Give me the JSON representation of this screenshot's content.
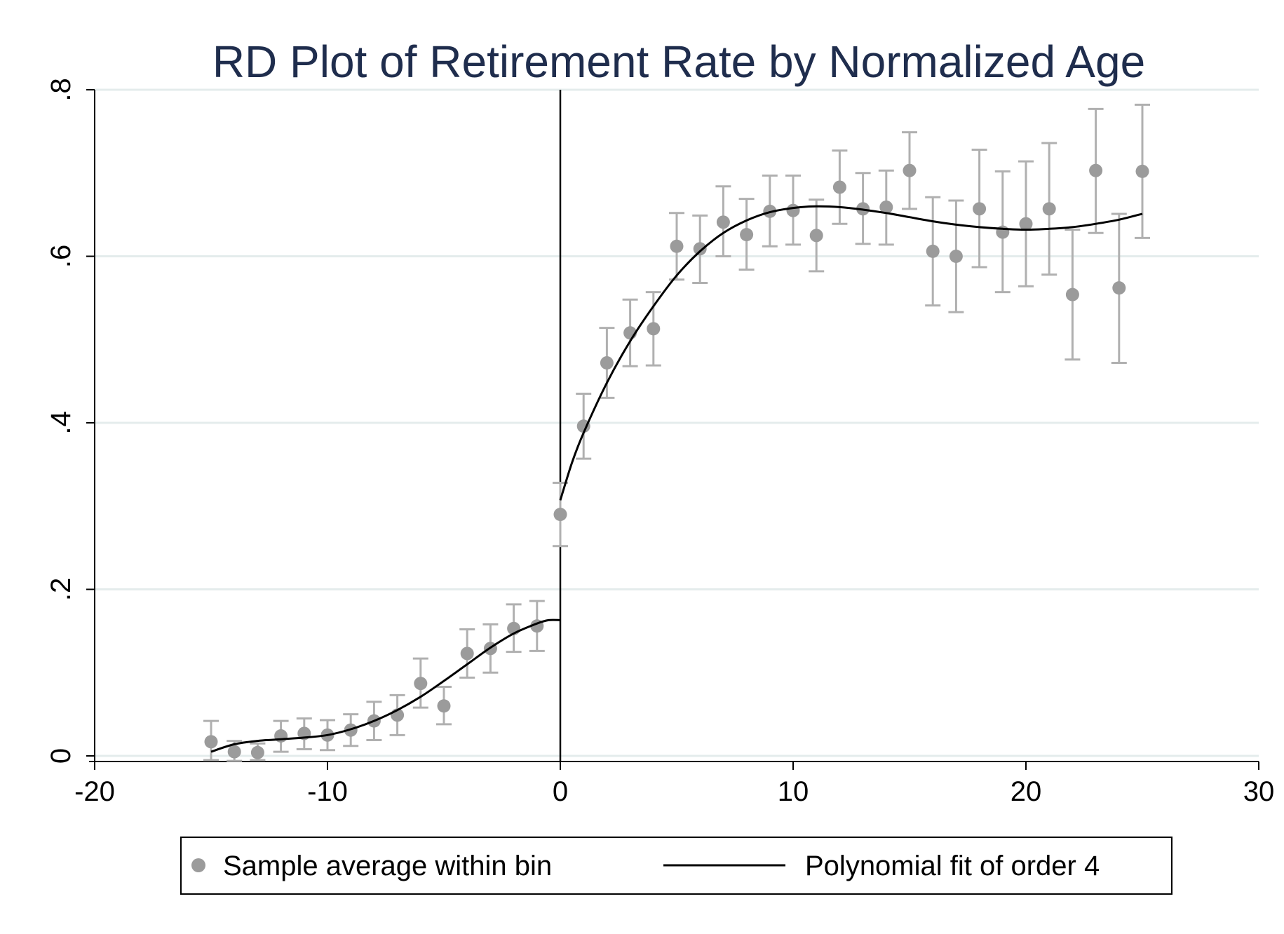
{
  "chart_data": {
    "type": "scatter",
    "title": "RD Plot of Retirement Rate by Normalized Age",
    "xlabel": "",
    "ylabel": "",
    "xlim": [
      -20,
      30
    ],
    "ylim": [
      0,
      0.8
    ],
    "x_ticks": [
      {
        "value": -20,
        "label": "-20"
      },
      {
        "value": -10,
        "label": "-10"
      },
      {
        "value": 0,
        "label": "0"
      },
      {
        "value": 10,
        "label": "10"
      },
      {
        "value": 20,
        "label": "20"
      },
      {
        "value": 30,
        "label": "30"
      }
    ],
    "y_ticks": [
      {
        "value": 0,
        "label": "0"
      },
      {
        "value": 0.2,
        "label": ".2"
      },
      {
        "value": 0.4,
        "label": ".4"
      },
      {
        "value": 0.6,
        "label": ".6"
      },
      {
        "value": 0.8,
        "label": ".8"
      }
    ],
    "grid": true,
    "cutoff": 0,
    "legend_position": "bottom",
    "colors": {
      "points": "#9b9b9b",
      "errorbars": "#b0b0b0",
      "fit": "#000000",
      "grid": "#e4ecec",
      "title": "#1f2d4d"
    },
    "series": [
      {
        "name": "Sample average within bin",
        "kind": "scatter",
        "points": [
          {
            "x": -15,
            "y": 0.017,
            "lo": -0.005,
            "hi": 0.042
          },
          {
            "x": -14,
            "y": 0.005,
            "lo": -0.006,
            "hi": 0.018
          },
          {
            "x": -13,
            "y": 0.004,
            "lo": -0.005,
            "hi": 0.015
          },
          {
            "x": -12,
            "y": 0.024,
            "lo": 0.005,
            "hi": 0.042
          },
          {
            "x": -11,
            "y": 0.027,
            "lo": 0.008,
            "hi": 0.045
          },
          {
            "x": -10,
            "y": 0.025,
            "lo": 0.007,
            "hi": 0.043
          },
          {
            "x": -9,
            "y": 0.031,
            "lo": 0.012,
            "hi": 0.05
          },
          {
            "x": -8,
            "y": 0.042,
            "lo": 0.019,
            "hi": 0.065
          },
          {
            "x": -7,
            "y": 0.049,
            "lo": 0.025,
            "hi": 0.073
          },
          {
            "x": -6,
            "y": 0.087,
            "lo": 0.058,
            "hi": 0.117
          },
          {
            "x": -5,
            "y": 0.06,
            "lo": 0.038,
            "hi": 0.083
          },
          {
            "x": -4,
            "y": 0.123,
            "lo": 0.094,
            "hi": 0.152
          },
          {
            "x": -3,
            "y": 0.129,
            "lo": 0.1,
            "hi": 0.158
          },
          {
            "x": -2,
            "y": 0.153,
            "lo": 0.125,
            "hi": 0.182
          },
          {
            "x": -1,
            "y": 0.156,
            "lo": 0.126,
            "hi": 0.186
          },
          {
            "x": 0,
            "y": 0.29,
            "lo": 0.252,
            "hi": 0.328
          },
          {
            "x": 1,
            "y": 0.396,
            "lo": 0.357,
            "hi": 0.435
          },
          {
            "x": 2,
            "y": 0.472,
            "lo": 0.43,
            "hi": 0.514
          },
          {
            "x": 3,
            "y": 0.508,
            "lo": 0.468,
            "hi": 0.548
          },
          {
            "x": 4,
            "y": 0.513,
            "lo": 0.469,
            "hi": 0.557
          },
          {
            "x": 5,
            "y": 0.612,
            "lo": 0.572,
            "hi": 0.652
          },
          {
            "x": 6,
            "y": 0.609,
            "lo": 0.568,
            "hi": 0.649
          },
          {
            "x": 7,
            "y": 0.641,
            "lo": 0.6,
            "hi": 0.684
          },
          {
            "x": 8,
            "y": 0.626,
            "lo": 0.584,
            "hi": 0.669
          },
          {
            "x": 9,
            "y": 0.654,
            "lo": 0.612,
            "hi": 0.697
          },
          {
            "x": 10,
            "y": 0.655,
            "lo": 0.614,
            "hi": 0.697
          },
          {
            "x": 11,
            "y": 0.625,
            "lo": 0.582,
            "hi": 0.668
          },
          {
            "x": 12,
            "y": 0.683,
            "lo": 0.639,
            "hi": 0.727
          },
          {
            "x": 13,
            "y": 0.657,
            "lo": 0.615,
            "hi": 0.7
          },
          {
            "x": 14,
            "y": 0.659,
            "lo": 0.614,
            "hi": 0.703
          },
          {
            "x": 15,
            "y": 0.703,
            "lo": 0.657,
            "hi": 0.749
          },
          {
            "x": 16,
            "y": 0.606,
            "lo": 0.541,
            "hi": 0.671
          },
          {
            "x": 17,
            "y": 0.6,
            "lo": 0.533,
            "hi": 0.667
          },
          {
            "x": 18,
            "y": 0.657,
            "lo": 0.587,
            "hi": 0.728
          },
          {
            "x": 19,
            "y": 0.629,
            "lo": 0.557,
            "hi": 0.702
          },
          {
            "x": 20,
            "y": 0.639,
            "lo": 0.564,
            "hi": 0.714
          },
          {
            "x": 21,
            "y": 0.657,
            "lo": 0.578,
            "hi": 0.736
          },
          {
            "x": 22,
            "y": 0.554,
            "lo": 0.476,
            "hi": 0.632
          },
          {
            "x": 23,
            "y": 0.703,
            "lo": 0.628,
            "hi": 0.777
          },
          {
            "x": 24,
            "y": 0.562,
            "lo": 0.472,
            "hi": 0.651
          },
          {
            "x": 25,
            "y": 0.702,
            "lo": 0.622,
            "hi": 0.782
          }
        ]
      },
      {
        "name": "Polynomial fit of order 4",
        "kind": "line",
        "segments": [
          [
            {
              "x": -15,
              "y": 0.005
            },
            {
              "x": -14,
              "y": 0.014
            },
            {
              "x": -13,
              "y": 0.018
            },
            {
              "x": -12,
              "y": 0.02
            },
            {
              "x": -11,
              "y": 0.022
            },
            {
              "x": -10,
              "y": 0.025
            },
            {
              "x": -9,
              "y": 0.032
            },
            {
              "x": -8,
              "y": 0.042
            },
            {
              "x": -7,
              "y": 0.055
            },
            {
              "x": -6,
              "y": 0.071
            },
            {
              "x": -5,
              "y": 0.09
            },
            {
              "x": -4,
              "y": 0.11
            },
            {
              "x": -3,
              "y": 0.13
            },
            {
              "x": -2,
              "y": 0.147
            },
            {
              "x": -1,
              "y": 0.159
            },
            {
              "x": -0.5,
              "y": 0.163
            },
            {
              "x": 0,
              "y": 0.163
            }
          ],
          [
            {
              "x": 0,
              "y": 0.307
            },
            {
              "x": 0.5,
              "y": 0.352
            },
            {
              "x": 1,
              "y": 0.388
            },
            {
              "x": 2,
              "y": 0.448
            },
            {
              "x": 3,
              "y": 0.498
            },
            {
              "x": 4,
              "y": 0.54
            },
            {
              "x": 5,
              "y": 0.577
            },
            {
              "x": 6,
              "y": 0.606
            },
            {
              "x": 7,
              "y": 0.628
            },
            {
              "x": 8,
              "y": 0.643
            },
            {
              "x": 9,
              "y": 0.653
            },
            {
              "x": 10,
              "y": 0.658
            },
            {
              "x": 11,
              "y": 0.66
            },
            {
              "x": 12,
              "y": 0.659
            },
            {
              "x": 13,
              "y": 0.656
            },
            {
              "x": 14,
              "y": 0.652
            },
            {
              "x": 15,
              "y": 0.647
            },
            {
              "x": 16,
              "y": 0.642
            },
            {
              "x": 17,
              "y": 0.638
            },
            {
              "x": 18,
              "y": 0.635
            },
            {
              "x": 19,
              "y": 0.633
            },
            {
              "x": 20,
              "y": 0.632
            },
            {
              "x": 21,
              "y": 0.633
            },
            {
              "x": 22,
              "y": 0.635
            },
            {
              "x": 23,
              "y": 0.639
            },
            {
              "x": 24,
              "y": 0.644
            },
            {
              "x": 25,
              "y": 0.651
            }
          ]
        ]
      }
    ]
  }
}
